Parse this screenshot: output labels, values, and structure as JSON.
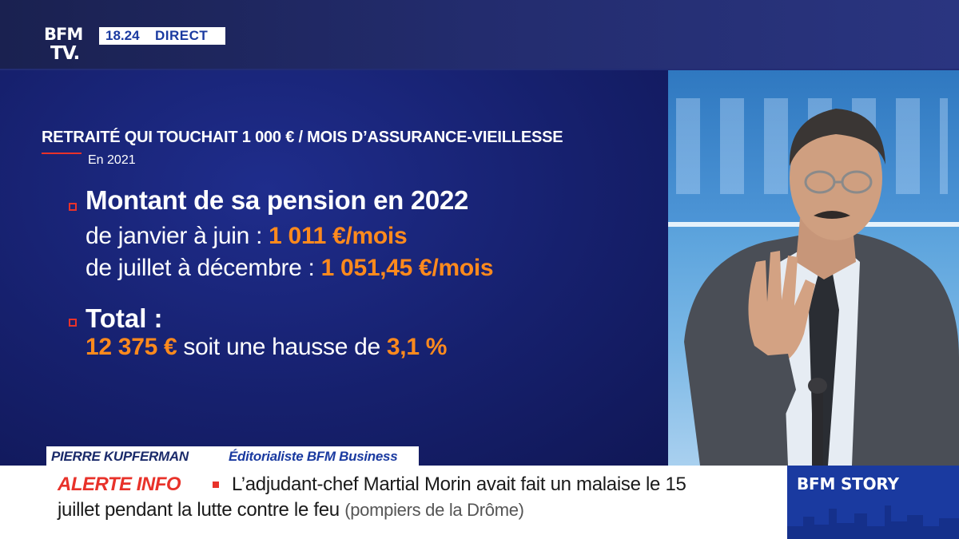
{
  "channel": {
    "logo_line1": "BFM",
    "logo_line2": "TV.",
    "time": "18.24",
    "live_label": "DIRECT"
  },
  "graphic": {
    "title": "RETRAITÉ QUI TOUCHAIT 1 000 € / MOIS D’ASSURANCE-VIEILLESSE",
    "subtitle": "En 2021",
    "pension_heading": "Montant de sa pension en 2022",
    "row_jan_label": "de janvier à juin : ",
    "row_jan_value": "1 011 €/mois",
    "row_jul_label": "de juillet à décembre : ",
    "row_jul_value": "1 051,45 €/mois",
    "total_label": "Total :",
    "total_value": "12 375 €",
    "total_middle": " soit une hausse de ",
    "total_increase": "3,1 %"
  },
  "name_strap": {
    "name": "PIERRE KUPFERMAN",
    "role": "Éditorialiste BFM Business"
  },
  "ticker": {
    "label": "ALERTE INFO",
    "text_line1": "L’adjudant-chef Martial Morin avait fait un malaise le 15",
    "text_line2": "juillet pendant la lutte contre le feu",
    "source": "(pompiers de la Drôme)"
  },
  "program": {
    "label": "BFM STORY"
  },
  "colors": {
    "accent_orange": "#ff8a1d",
    "accent_red": "#e8322a",
    "brand_blue": "#1a3aa0"
  }
}
